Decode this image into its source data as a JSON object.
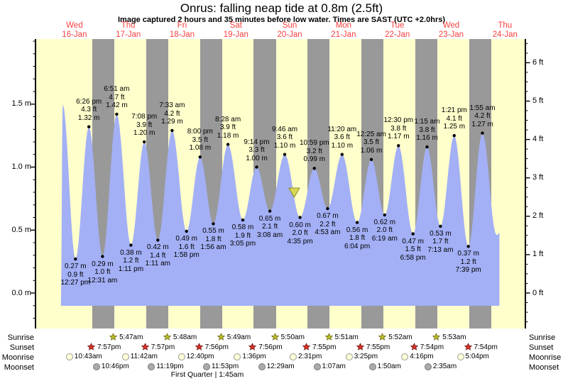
{
  "title": "Onrus: falling  neap tide at 0.8m (2.5ft)",
  "subtitle": "Image captured 2 hours and 35 minutes before low water. Times are SAST (UTC +2.0hrs)",
  "row_labels": {
    "sunrise": "Sunrise",
    "sunset": "Sunset",
    "moonrise": "Moonrise",
    "moonset": "Moonset"
  },
  "moon_phase_note": "First Quarter | 1:45am",
  "colors": {
    "day_band": "#FFFFCC",
    "night_band": "#999999",
    "water": "#A3B0F6",
    "day_label": "#F94040",
    "marker_fill": "#D8D855",
    "marker_stroke": "#8B8B20",
    "sunrise_star_fill": "#B9B92E",
    "sunrise_star_stroke": "#5A5A00",
    "sunset_star_fill": "#D53427",
    "sunset_star_stroke": "#600000",
    "moonrise_fill": "#FFFFD6",
    "moonrise_stroke": "#999999",
    "moonset_fill": "#ABABAB",
    "moonset_stroke": "#777777",
    "axis": "#000000",
    "dot": "#000000"
  },
  "chart_data": {
    "type": "area",
    "title": "Onrus: falling  neap tide at 0.8m (2.5ft)",
    "subtitle": "Image captured 2 hours and 35 minutes before low water. Times are SAST (UTC +2.0hrs)",
    "days": [
      {
        "name": "Wed",
        "date": "16-Jan"
      },
      {
        "name": "Thu",
        "date": "17-Jan"
      },
      {
        "name": "Fri",
        "date": "18-Jan"
      },
      {
        "name": "Sat",
        "date": "19-Jan"
      },
      {
        "name": "Sun",
        "date": "20-Jan"
      },
      {
        "name": "Mon",
        "date": "21-Jan"
      },
      {
        "name": "Tue",
        "date": "22-Jan"
      },
      {
        "name": "Wed",
        "date": "23-Jan"
      },
      {
        "name": "Thu",
        "date": "24-Jan"
      }
    ],
    "y_axis_left": {
      "unit": "m",
      "range_m": [
        -0.3,
        2.0
      ],
      "ticks": [
        {
          "v": 0,
          "label": "0.0 m"
        },
        {
          "v": 0.5,
          "label": "0.5 m"
        },
        {
          "v": 1.0,
          "label": "1.0 m"
        },
        {
          "v": 1.5,
          "label": "1.5 m"
        }
      ]
    },
    "y_axis_right": {
      "unit": "ft",
      "range_ft": [
        -0.9,
        6.6
      ],
      "ticks": [
        {
          "v": 0,
          "label": "0 ft"
        },
        {
          "v": 1,
          "label": "1 ft"
        },
        {
          "v": 2,
          "label": "2 ft"
        },
        {
          "v": 3,
          "label": "3 ft"
        },
        {
          "v": 4,
          "label": "4 ft"
        },
        {
          "v": 5,
          "label": "5 ft"
        },
        {
          "v": 6,
          "label": "6 ft"
        }
      ]
    },
    "tide_events": [
      {
        "day": 0,
        "time": "5:55 am",
        "type": "low",
        "m": "-0.10",
        "ft": "",
        "show": false
      },
      {
        "day": 0,
        "time": "6:45 am",
        "type": "high",
        "m": "1.50",
        "ft": "4.9",
        "show": false
      },
      {
        "day": 0,
        "time": "12:27 pm",
        "type": "low",
        "m": "0.27",
        "ft": "0.9",
        "show": true
      },
      {
        "day": 0,
        "time": "6:26 pm",
        "type": "high",
        "m": "1.32",
        "ft": "4.3",
        "show": true
      },
      {
        "day": 1,
        "time": "12:31 am",
        "type": "low",
        "m": "0.29",
        "ft": "1.0",
        "show": true
      },
      {
        "day": 1,
        "time": "6:51 am",
        "type": "high",
        "m": "1.42",
        "ft": "4.7",
        "show": true
      },
      {
        "day": 1,
        "time": "1:11 pm",
        "type": "low",
        "m": "0.38",
        "ft": "1.2",
        "show": true
      },
      {
        "day": 1,
        "time": "7:08 pm",
        "type": "high",
        "m": "1.20",
        "ft": "3.9",
        "show": true
      },
      {
        "day": 2,
        "time": "1:11 am",
        "type": "low",
        "m": "0.42",
        "ft": "1.4",
        "show": true
      },
      {
        "day": 2,
        "time": "7:33 am",
        "type": "high",
        "m": "1.29",
        "ft": "4.2",
        "show": true
      },
      {
        "day": 2,
        "time": "1:58 pm",
        "type": "low",
        "m": "0.49",
        "ft": "1.6",
        "show": true
      },
      {
        "day": 2,
        "time": "8:00 pm",
        "type": "high",
        "m": "1.08",
        "ft": "3.5",
        "show": true
      },
      {
        "day": 3,
        "time": "1:56 am",
        "type": "low",
        "m": "0.55",
        "ft": "1.8",
        "show": true
      },
      {
        "day": 3,
        "time": "8:28 am",
        "type": "high",
        "m": "1.18",
        "ft": "3.9",
        "show": true
      },
      {
        "day": 3,
        "time": "3:05 pm",
        "type": "low",
        "m": "0.58",
        "ft": "1.9",
        "show": true
      },
      {
        "day": 3,
        "time": "9:14 pm",
        "type": "high",
        "m": "1.00",
        "ft": "3.3",
        "show": true
      },
      {
        "day": 4,
        "time": "3:08 am",
        "type": "low",
        "m": "0.65",
        "ft": "2.1",
        "show": true
      },
      {
        "day": 4,
        "time": "9:46 am",
        "type": "high",
        "m": "1.10",
        "ft": "3.6",
        "show": true
      },
      {
        "day": 4,
        "time": "4:35 pm",
        "type": "low",
        "m": "0.60",
        "ft": "2.0",
        "show": true
      },
      {
        "day": 4,
        "time": "10:59 pm",
        "type": "high",
        "m": "0.99",
        "ft": "3.2",
        "show": true
      },
      {
        "day": 5,
        "time": "4:53 am",
        "type": "low",
        "m": "0.67",
        "ft": "2.2",
        "show": true
      },
      {
        "day": 5,
        "time": "11:20 am",
        "type": "high",
        "m": "1.10",
        "ft": "3.6",
        "show": true
      },
      {
        "day": 5,
        "time": "6:04 pm",
        "type": "low",
        "m": "0.56",
        "ft": "1.8",
        "show": true
      },
      {
        "day": 6,
        "time": "12:25 am",
        "type": "high",
        "m": "1.06",
        "ft": "3.5",
        "show": true
      },
      {
        "day": 6,
        "time": "6:19 am",
        "type": "low",
        "m": "0.62",
        "ft": "2.0",
        "show": true
      },
      {
        "day": 6,
        "time": "12:30 pm",
        "type": "high",
        "m": "1.17",
        "ft": "3.8",
        "show": true
      },
      {
        "day": 6,
        "time": "6:58 pm",
        "type": "low",
        "m": "0.47",
        "ft": "1.5",
        "show": true
      },
      {
        "day": 7,
        "time": "1:15 am",
        "type": "high",
        "m": "1.16",
        "ft": "3.8",
        "show": true
      },
      {
        "day": 7,
        "time": "7:13 am",
        "type": "low",
        "m": "0.53",
        "ft": "1.7",
        "show": true
      },
      {
        "day": 7,
        "time": "1:21 pm",
        "type": "high",
        "m": "1.25",
        "ft": "4.1",
        "show": true
      },
      {
        "day": 7,
        "time": "7:39 pm",
        "type": "low",
        "m": "0.37",
        "ft": "1.2",
        "show": true
      },
      {
        "day": 8,
        "time": "1:55 am",
        "type": "high",
        "m": "1.27",
        "ft": "4.2",
        "show": true
      },
      {
        "day": 8,
        "time": "8:13 am",
        "type": "low",
        "m": "0.46",
        "ft": "",
        "show": false
      }
    ],
    "water_end": {
      "day": 8,
      "time": "9:30 am"
    },
    "current_marker": {
      "day": 4,
      "time": "2:00 pm",
      "m": "0.80"
    },
    "sun": {
      "sunrise": [
        {
          "day": 1,
          "time": "5:47am"
        },
        {
          "day": 2,
          "time": "5:48am"
        },
        {
          "day": 3,
          "time": "5:49am"
        },
        {
          "day": 4,
          "time": "5:50am"
        },
        {
          "day": 5,
          "time": "5:51am"
        },
        {
          "day": 6,
          "time": "5:52am"
        },
        {
          "day": 7,
          "time": "5:53am"
        }
      ],
      "sunset": [
        {
          "day": 0,
          "time": "7:57pm"
        },
        {
          "day": 1,
          "time": "7:57pm"
        },
        {
          "day": 2,
          "time": "7:56pm"
        },
        {
          "day": 3,
          "time": "7:56pm"
        },
        {
          "day": 4,
          "time": "7:55pm"
        },
        {
          "day": 5,
          "time": "7:55pm"
        },
        {
          "day": 6,
          "time": "7:54pm"
        },
        {
          "day": 7,
          "time": "7:54pm"
        }
      ]
    },
    "moon": {
      "moonrise": [
        {
          "day": 0,
          "time": "10:43am"
        },
        {
          "day": 1,
          "time": "11:42am"
        },
        {
          "day": 2,
          "time": "12:40pm"
        },
        {
          "day": 3,
          "time": "1:36pm"
        },
        {
          "day": 4,
          "time": "2:31pm"
        },
        {
          "day": 5,
          "time": "3:25pm"
        },
        {
          "day": 6,
          "time": "4:16pm"
        },
        {
          "day": 7,
          "time": "5:04pm"
        }
      ],
      "moonset": [
        {
          "day": 0,
          "time": "10:46pm"
        },
        {
          "day": 1,
          "time": "11:19pm"
        },
        {
          "day": 2,
          "time": "11:53pm"
        },
        {
          "day": 4,
          "time": "12:29am"
        },
        {
          "day": 5,
          "time": "1:07am"
        },
        {
          "day": 6,
          "time": "1:50am"
        },
        {
          "day": 7,
          "time": "2:35am"
        }
      ],
      "phase": "First Quarter | 1:45am"
    }
  }
}
